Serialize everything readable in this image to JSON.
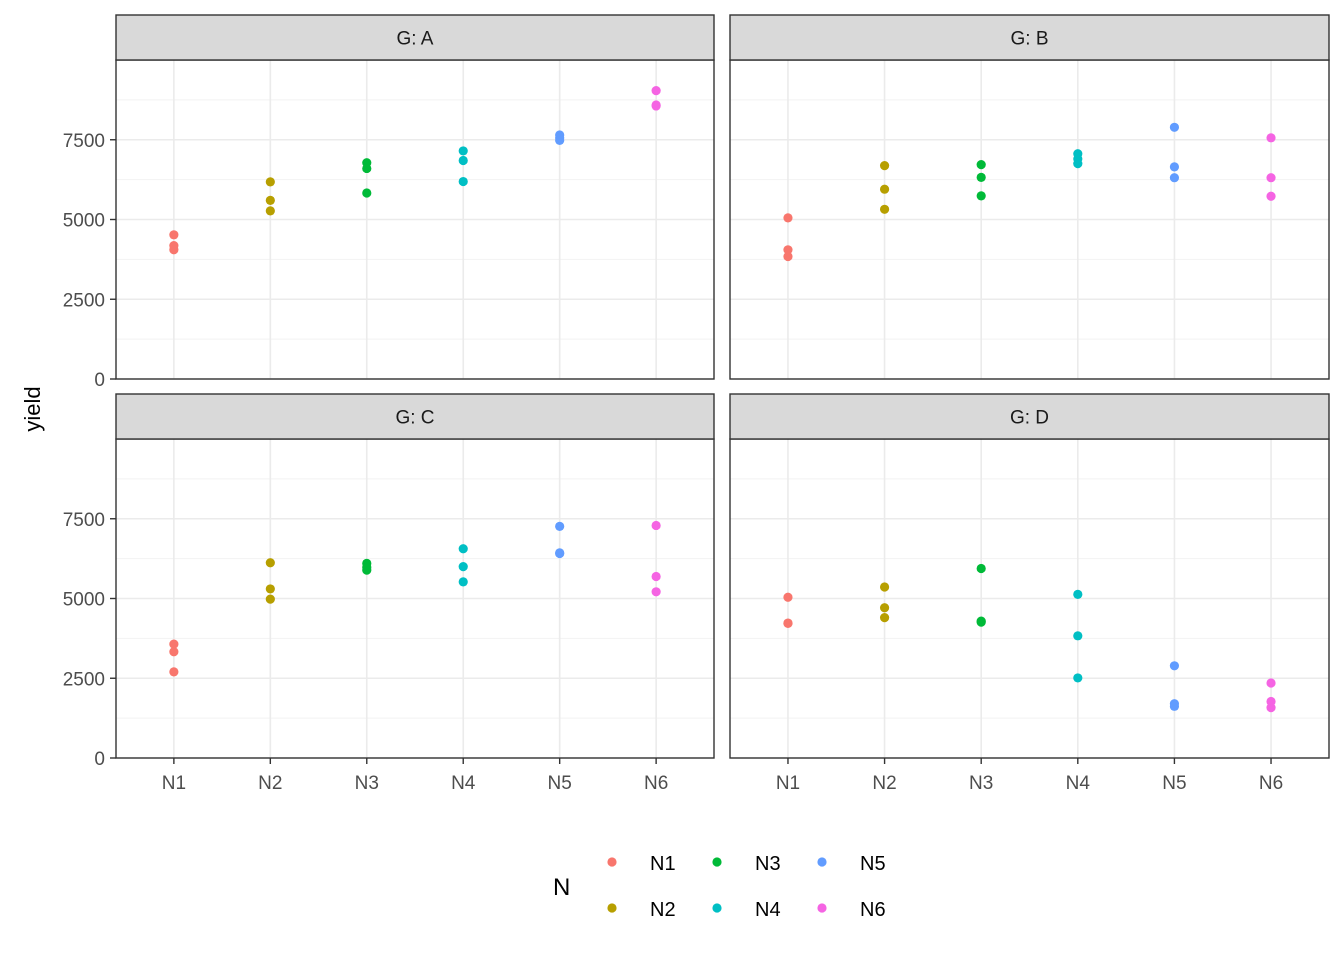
{
  "chart_data": {
    "type": "scatter",
    "ylabel": "yield",
    "xlabel": "",
    "ylim": [
      0,
      10000
    ],
    "yticks": [
      0,
      2500,
      5000,
      7500
    ],
    "categories": [
      "N1",
      "N2",
      "N3",
      "N4",
      "N5",
      "N6"
    ],
    "colors": {
      "N1": "#F8766D",
      "N2": "#B79F00",
      "N3": "#00BA38",
      "N4": "#00BFC4",
      "N5": "#619CFF",
      "N6": "#F564E3"
    },
    "legend": {
      "title": "N",
      "position": "bottom",
      "entries": [
        "N1",
        "N2",
        "N3",
        "N4",
        "N5",
        "N6"
      ]
    },
    "grid": true,
    "facets": [
      {
        "label": "G: A",
        "points": {
          "N1": [
            4520,
            4180,
            4050
          ],
          "N2": [
            6180,
            5600,
            5270
          ],
          "N3": [
            6780,
            6600,
            5830
          ],
          "N4": [
            7150,
            6850,
            6190
          ],
          "N5": [
            7650,
            7560,
            7480
          ],
          "N6": [
            9040,
            8590,
            8560
          ]
        }
      },
      {
        "label": "G: B",
        "points": {
          "N1": [
            5050,
            4050,
            3840
          ],
          "N2": [
            6690,
            5950,
            5320
          ],
          "N3": [
            6720,
            6320,
            5740
          ],
          "N4": [
            7060,
            6900,
            6750
          ],
          "N5": [
            7890,
            6650,
            6310
          ],
          "N6": [
            7560,
            6310,
            5730
          ]
        }
      },
      {
        "label": "G: C",
        "points": {
          "N1": [
            3570,
            3330,
            2700
          ],
          "N2": [
            6120,
            5300,
            4980
          ],
          "N3": [
            6100,
            5980,
            5890
          ],
          "N4": [
            6560,
            6000,
            5520
          ],
          "N5": [
            7260,
            6430,
            6410
          ],
          "N6": [
            7290,
            5690,
            5210
          ]
        }
      },
      {
        "label": "G: D",
        "points": {
          "N1": [
            5040,
            4230,
            4220
          ],
          "N2": [
            5360,
            4710,
            4400
          ],
          "N3": [
            5940,
            4290,
            4260
          ],
          "N4": [
            5130,
            3830,
            2510
          ],
          "N5": [
            2890,
            1700,
            1620
          ],
          "N6": [
            2350,
            1770,
            1580
          ]
        }
      }
    ]
  }
}
